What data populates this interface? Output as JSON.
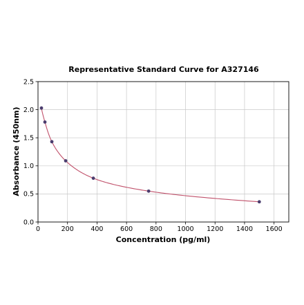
{
  "chart_data": {
    "type": "scatter",
    "title": "Representative Standard Curve for A327146",
    "xlabel": "Concentration (pg/ml)",
    "ylabel": "Absorbance (450nm)",
    "xlim": [
      0,
      1700
    ],
    "ylim": [
      0,
      2.5
    ],
    "xticks": [
      0,
      200,
      400,
      600,
      800,
      1000,
      1200,
      1400,
      1600
    ],
    "xtick_labels": [
      "0",
      "200",
      "400",
      "600",
      "800",
      "1000",
      "1200",
      "1400",
      "1600"
    ],
    "yticks": [
      0,
      0.5,
      1.0,
      1.5,
      2.0,
      2.5
    ],
    "ytick_labels": [
      "0.0",
      "0.5",
      "1.0",
      "1.5",
      "2.0",
      "2.5"
    ],
    "grid": true,
    "series": [
      {
        "x": [
          23.4,
          46.9,
          93.8,
          187.5,
          375,
          750,
          1500
        ],
        "y": [
          2.03,
          1.78,
          1.43,
          1.09,
          0.78,
          0.55,
          0.36
        ],
        "marker_color": "#4b3d6e",
        "line_color": "#c0506a",
        "fit": "smooth curve"
      }
    ]
  }
}
